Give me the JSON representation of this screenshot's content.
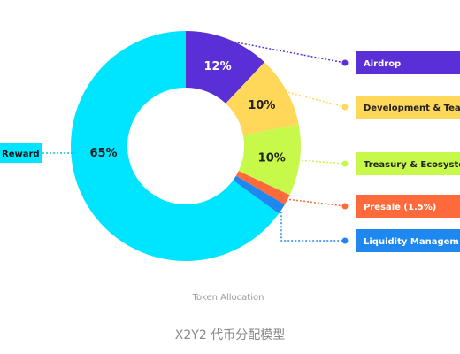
{
  "chart_data": {
    "type": "pie",
    "variant": "donut",
    "title": "Token Allocation",
    "slices": [
      {
        "label": "Airdrop",
        "value": 12,
        "value_label": "12%",
        "color": "#5a2fd6",
        "label_color": "#ffffff"
      },
      {
        "label": "Development & Tea",
        "value": 10,
        "value_label": "10%",
        "color": "#ffd85a",
        "label_color": "#222222"
      },
      {
        "label": "Treasury & Ecosyste",
        "value": 10,
        "value_label": "10%",
        "color": "#c6f94a",
        "label_color": "#222222"
      },
      {
        "label": "Presale (1.5%)",
        "value": 1.5,
        "value_label": "",
        "color": "#ff6a3d",
        "label_color": "#ffffff"
      },
      {
        "label": "Liquidity Managem",
        "value": 1.5,
        "value_label": "",
        "color": "#1e88f0",
        "label_color": "#ffffff"
      },
      {
        "label": "Reward",
        "value": 65,
        "value_label": "65%",
        "color": "#00e5ff",
        "label_color": "#222222"
      }
    ]
  },
  "caption": "X2Y2 代币分配模型",
  "colors": {
    "background": "#ffffff",
    "title_text": "#9a9a9a",
    "caption_text": "#888888"
  }
}
